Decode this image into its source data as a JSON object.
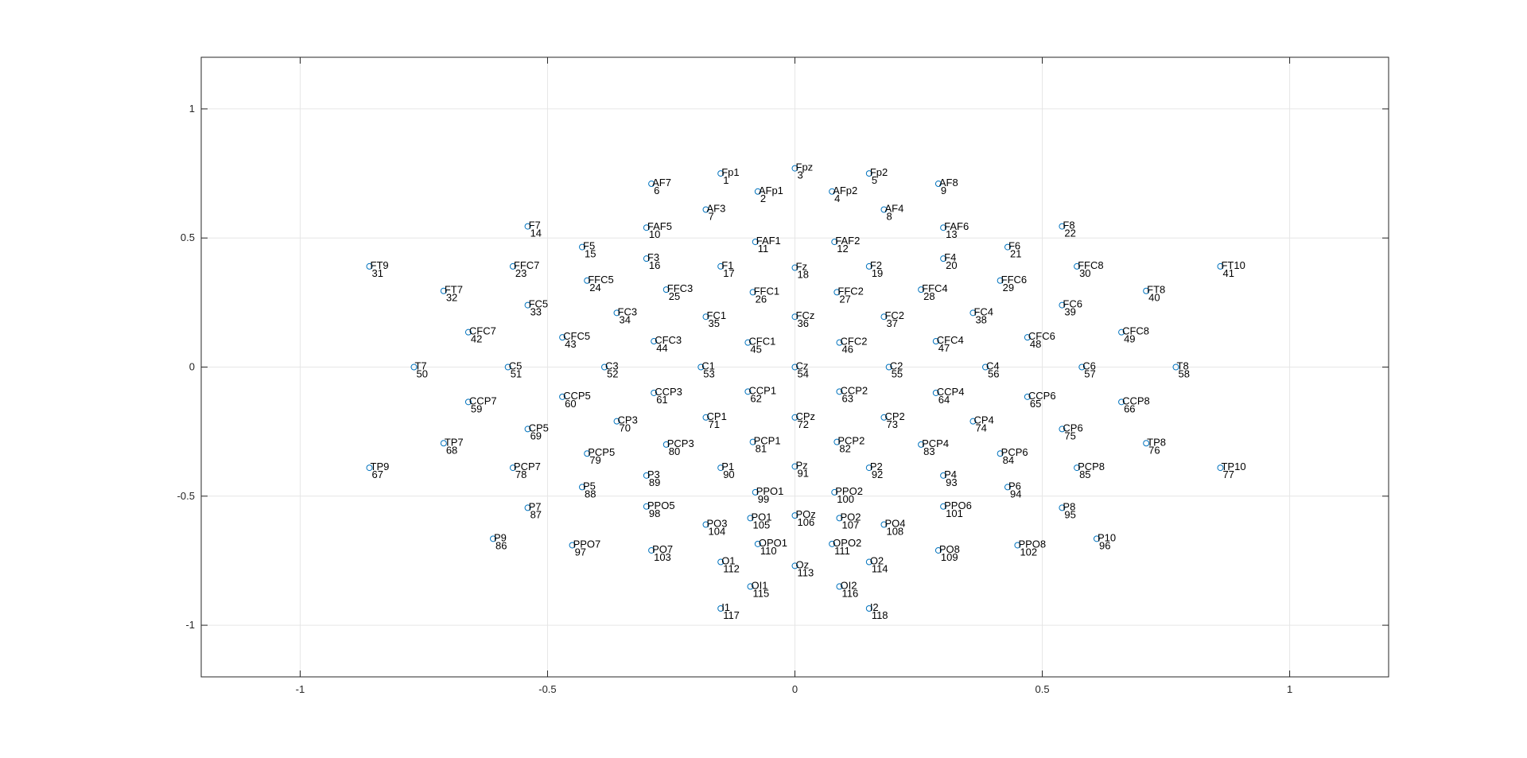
{
  "chart_data": {
    "type": "scatter",
    "title": "",
    "xlabel": "",
    "ylabel": "",
    "xlim": [
      -1.2,
      1.2
    ],
    "ylim": [
      -1.2,
      1.2
    ],
    "xticks": [
      -1,
      -0.5,
      0,
      0.5,
      1
    ],
    "yticks": [
      1,
      0.5,
      0,
      -0.5,
      -1
    ],
    "xtick_labels": [
      "-1",
      "-0.5",
      "0",
      "0.5",
      "1"
    ],
    "ytick_labels": [
      "1",
      "0.5",
      "0",
      "-0.5",
      "-1"
    ],
    "grid": true,
    "marker_color": "#0072BD",
    "points": [
      {
        "label": "Fp1",
        "index": "1",
        "x": -0.15,
        "y": 0.75
      },
      {
        "label": "AFp1",
        "index": "2",
        "x": -0.075,
        "y": 0.68
      },
      {
        "label": "Fpz",
        "index": "3",
        "x": 0.0,
        "y": 0.77
      },
      {
        "label": "AFp2",
        "index": "4",
        "x": 0.075,
        "y": 0.68
      },
      {
        "label": "Fp2",
        "index": "5",
        "x": 0.15,
        "y": 0.75
      },
      {
        "label": "AF7",
        "index": "6",
        "x": -0.29,
        "y": 0.71
      },
      {
        "label": "AF3",
        "index": "7",
        "x": -0.18,
        "y": 0.61
      },
      {
        "label": "AF4",
        "index": "8",
        "x": 0.18,
        "y": 0.61
      },
      {
        "label": "AF8",
        "index": "9",
        "x": 0.29,
        "y": 0.71
      },
      {
        "label": "FAF5",
        "index": "10",
        "x": -0.3,
        "y": 0.54
      },
      {
        "label": "FAF1",
        "index": "11",
        "x": -0.08,
        "y": 0.485
      },
      {
        "label": "FAF2",
        "index": "12",
        "x": 0.08,
        "y": 0.485
      },
      {
        "label": "FAF6",
        "index": "13",
        "x": 0.3,
        "y": 0.54
      },
      {
        "label": "F7",
        "index": "14",
        "x": -0.54,
        "y": 0.545
      },
      {
        "label": "F5",
        "index": "15",
        "x": -0.43,
        "y": 0.465
      },
      {
        "label": "F3",
        "index": "16",
        "x": -0.3,
        "y": 0.42
      },
      {
        "label": "F1",
        "index": "17",
        "x": -0.15,
        "y": 0.39
      },
      {
        "label": "Fz",
        "index": "18",
        "x": 0.0,
        "y": 0.385
      },
      {
        "label": "F2",
        "index": "19",
        "x": 0.15,
        "y": 0.39
      },
      {
        "label": "F4",
        "index": "20",
        "x": 0.3,
        "y": 0.42
      },
      {
        "label": "F6",
        "index": "21",
        "x": 0.43,
        "y": 0.465
      },
      {
        "label": "F8",
        "index": "22",
        "x": 0.54,
        "y": 0.545
      },
      {
        "label": "FFC7",
        "index": "23",
        "x": -0.57,
        "y": 0.39
      },
      {
        "label": "FFC5",
        "index": "24",
        "x": -0.42,
        "y": 0.335
      },
      {
        "label": "FFC3",
        "index": "25",
        "x": -0.26,
        "y": 0.3
      },
      {
        "label": "FFC1",
        "index": "26",
        "x": -0.085,
        "y": 0.29
      },
      {
        "label": "FFC2",
        "index": "27",
        "x": 0.085,
        "y": 0.29
      },
      {
        "label": "FFC4",
        "index": "28",
        "x": 0.255,
        "y": 0.3
      },
      {
        "label": "FFC6",
        "index": "29",
        "x": 0.415,
        "y": 0.335
      },
      {
        "label": "FFC8",
        "index": "30",
        "x": 0.57,
        "y": 0.39
      },
      {
        "label": "FT9",
        "index": "31",
        "x": -0.86,
        "y": 0.39
      },
      {
        "label": "FT7",
        "index": "32",
        "x": -0.71,
        "y": 0.295
      },
      {
        "label": "FC5",
        "index": "33",
        "x": -0.54,
        "y": 0.24
      },
      {
        "label": "FC3",
        "index": "34",
        "x": -0.36,
        "y": 0.21
      },
      {
        "label": "FC1",
        "index": "35",
        "x": -0.18,
        "y": 0.195
      },
      {
        "label": "FCz",
        "index": "36",
        "x": 0.0,
        "y": 0.195
      },
      {
        "label": "FC2",
        "index": "37",
        "x": 0.18,
        "y": 0.195
      },
      {
        "label": "FC4",
        "index": "38",
        "x": 0.36,
        "y": 0.21
      },
      {
        "label": "FC6",
        "index": "39",
        "x": 0.54,
        "y": 0.24
      },
      {
        "label": "FT8",
        "index": "40",
        "x": 0.71,
        "y": 0.295
      },
      {
        "label": "FT10",
        "index": "41",
        "x": 0.86,
        "y": 0.39
      },
      {
        "label": "CFC7",
        "index": "42",
        "x": -0.66,
        "y": 0.135
      },
      {
        "label": "CFC5",
        "index": "43",
        "x": -0.47,
        "y": 0.115
      },
      {
        "label": "CFC3",
        "index": "44",
        "x": -0.285,
        "y": 0.1
      },
      {
        "label": "CFC1",
        "index": "45",
        "x": -0.095,
        "y": 0.095
      },
      {
        "label": "CFC2",
        "index": "46",
        "x": 0.09,
        "y": 0.095
      },
      {
        "label": "CFC4",
        "index": "47",
        "x": 0.285,
        "y": 0.1
      },
      {
        "label": "CFC6",
        "index": "48",
        "x": 0.47,
        "y": 0.115
      },
      {
        "label": "CFC8",
        "index": "49",
        "x": 0.66,
        "y": 0.135
      },
      {
        "label": "T7",
        "index": "50",
        "x": -0.77,
        "y": 0.0
      },
      {
        "label": "C5",
        "index": "51",
        "x": -0.58,
        "y": 0.0
      },
      {
        "label": "C3",
        "index": "52",
        "x": -0.385,
        "y": 0.0
      },
      {
        "label": "C1",
        "index": "53",
        "x": -0.19,
        "y": 0.0
      },
      {
        "label": "Cz",
        "index": "54",
        "x": 0.0,
        "y": 0.0
      },
      {
        "label": "C2",
        "index": "55",
        "x": 0.19,
        "y": 0.0
      },
      {
        "label": "C4",
        "index": "56",
        "x": 0.385,
        "y": 0.0
      },
      {
        "label": "C6",
        "index": "57",
        "x": 0.58,
        "y": 0.0
      },
      {
        "label": "T8",
        "index": "58",
        "x": 0.77,
        "y": 0.0
      },
      {
        "label": "CCP7",
        "index": "59",
        "x": -0.66,
        "y": -0.135
      },
      {
        "label": "CCP5",
        "index": "60",
        "x": -0.47,
        "y": -0.115
      },
      {
        "label": "CCP3",
        "index": "61",
        "x": -0.285,
        "y": -0.1
      },
      {
        "label": "CCP1",
        "index": "62",
        "x": -0.095,
        "y": -0.095
      },
      {
        "label": "CCP2",
        "index": "63",
        "x": 0.09,
        "y": -0.095
      },
      {
        "label": "CCP4",
        "index": "64",
        "x": 0.285,
        "y": -0.1
      },
      {
        "label": "CCP6",
        "index": "65",
        "x": 0.47,
        "y": -0.115
      },
      {
        "label": "CCP8",
        "index": "66",
        "x": 0.66,
        "y": -0.135
      },
      {
        "label": "TP9",
        "index": "67",
        "x": -0.86,
        "y": -0.39
      },
      {
        "label": "TP7",
        "index": "68",
        "x": -0.71,
        "y": -0.295
      },
      {
        "label": "CP5",
        "index": "69",
        "x": -0.54,
        "y": -0.24
      },
      {
        "label": "CP3",
        "index": "70",
        "x": -0.36,
        "y": -0.21
      },
      {
        "label": "CP1",
        "index": "71",
        "x": -0.18,
        "y": -0.195
      },
      {
        "label": "CPz",
        "index": "72",
        "x": 0.0,
        "y": -0.195
      },
      {
        "label": "CP2",
        "index": "73",
        "x": 0.18,
        "y": -0.195
      },
      {
        "label": "CP4",
        "index": "74",
        "x": 0.36,
        "y": -0.21
      },
      {
        "label": "CP6",
        "index": "75",
        "x": 0.54,
        "y": -0.24
      },
      {
        "label": "TP8",
        "index": "76",
        "x": 0.71,
        "y": -0.295
      },
      {
        "label": "TP10",
        "index": "77",
        "x": 0.86,
        "y": -0.39
      },
      {
        "label": "PCP7",
        "index": "78",
        "x": -0.57,
        "y": -0.39
      },
      {
        "label": "PCP5",
        "index": "79",
        "x": -0.42,
        "y": -0.335
      },
      {
        "label": "PCP3",
        "index": "80",
        "x": -0.26,
        "y": -0.3
      },
      {
        "label": "PCP1",
        "index": "81",
        "x": -0.085,
        "y": -0.29
      },
      {
        "label": "PCP2",
        "index": "82",
        "x": 0.085,
        "y": -0.29
      },
      {
        "label": "PCP4",
        "index": "83",
        "x": 0.255,
        "y": -0.3
      },
      {
        "label": "PCP6",
        "index": "84",
        "x": 0.415,
        "y": -0.335
      },
      {
        "label": "PCP8",
        "index": "85",
        "x": 0.57,
        "y": -0.39
      },
      {
        "label": "P9",
        "index": "86",
        "x": -0.61,
        "y": -0.665
      },
      {
        "label": "P7",
        "index": "87",
        "x": -0.54,
        "y": -0.545
      },
      {
        "label": "P5",
        "index": "88",
        "x": -0.43,
        "y": -0.465
      },
      {
        "label": "P3",
        "index": "89",
        "x": -0.3,
        "y": -0.42
      },
      {
        "label": "P1",
        "index": "90",
        "x": -0.15,
        "y": -0.39
      },
      {
        "label": "Pz",
        "index": "91",
        "x": 0.0,
        "y": -0.385
      },
      {
        "label": "P2",
        "index": "92",
        "x": 0.15,
        "y": -0.39
      },
      {
        "label": "P4",
        "index": "93",
        "x": 0.3,
        "y": -0.42
      },
      {
        "label": "P6",
        "index": "94",
        "x": 0.43,
        "y": -0.465
      },
      {
        "label": "P8",
        "index": "95",
        "x": 0.54,
        "y": -0.545
      },
      {
        "label": "P10",
        "index": "96",
        "x": 0.61,
        "y": -0.665
      },
      {
        "label": "PPO7",
        "index": "97",
        "x": -0.45,
        "y": -0.69
      },
      {
        "label": "PPO5",
        "index": "98",
        "x": -0.3,
        "y": -0.54
      },
      {
        "label": "PPO1",
        "index": "99",
        "x": -0.08,
        "y": -0.485
      },
      {
        "label": "PPO2",
        "index": "100",
        "x": 0.08,
        "y": -0.485
      },
      {
        "label": "PPO6",
        "index": "101",
        "x": 0.3,
        "y": -0.54
      },
      {
        "label": "PPO8",
        "index": "102",
        "x": 0.45,
        "y": -0.69
      },
      {
        "label": "PO7",
        "index": "103",
        "x": -0.29,
        "y": -0.71
      },
      {
        "label": "PO3",
        "index": "104",
        "x": -0.18,
        "y": -0.61
      },
      {
        "label": "PO1",
        "index": "105",
        "x": -0.09,
        "y": -0.585
      },
      {
        "label": "POz",
        "index": "106",
        "x": 0.0,
        "y": -0.575
      },
      {
        "label": "PO2",
        "index": "107",
        "x": 0.09,
        "y": -0.585
      },
      {
        "label": "PO4",
        "index": "108",
        "x": 0.18,
        "y": -0.61
      },
      {
        "label": "PO8",
        "index": "109",
        "x": 0.29,
        "y": -0.71
      },
      {
        "label": "OPO1",
        "index": "110",
        "x": -0.075,
        "y": -0.685
      },
      {
        "label": "OPO2",
        "index": "111",
        "x": 0.075,
        "y": -0.685
      },
      {
        "label": "O1",
        "index": "112",
        "x": -0.15,
        "y": -0.755
      },
      {
        "label": "Oz",
        "index": "113",
        "x": 0.0,
        "y": -0.77
      },
      {
        "label": "O2",
        "index": "114",
        "x": 0.15,
        "y": -0.755
      },
      {
        "label": "OI1",
        "index": "115",
        "x": -0.09,
        "y": -0.85
      },
      {
        "label": "OI2",
        "index": "116",
        "x": 0.09,
        "y": -0.85
      },
      {
        "label": "I1",
        "index": "117",
        "x": -0.15,
        "y": -0.935
      },
      {
        "label": "I2",
        "index": "118",
        "x": 0.15,
        "y": -0.935
      }
    ]
  }
}
